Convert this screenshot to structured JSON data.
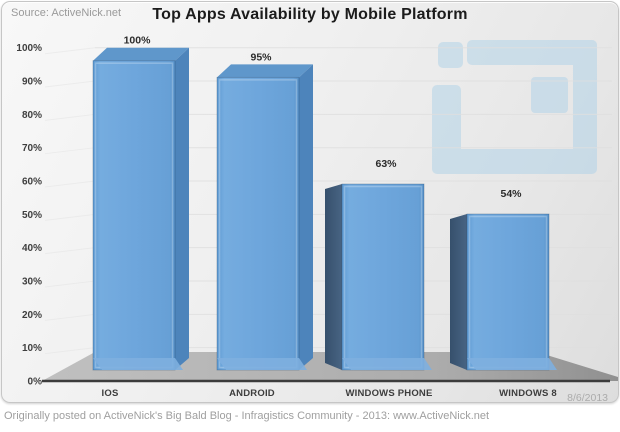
{
  "source_label": "Source: ActiveNick.net",
  "title": "Top Apps Availability by Mobile Platform",
  "date_label": "8/6/2013",
  "footer_note": "Originally posted on ActiveNick's Big Bald Blog - Infragistics Community - 2013: www.ActiveNick.net",
  "watermark": {
    "icon": "infragistics-ig-logo",
    "color": "#b7d6ea"
  },
  "chart_data": {
    "type": "bar",
    "style": "3d-bar",
    "title": "Top Apps Availability by Mobile Platform",
    "categories": [
      "IOS",
      "ANDROID",
      "WINDOWS PHONE",
      "WINDOWS 8"
    ],
    "values": [
      100,
      95,
      63,
      54
    ],
    "value_labels": [
      "100%",
      "95%",
      "63%",
      "54%"
    ],
    "yticks": [
      "0%",
      "10%",
      "20%",
      "30%",
      "40%",
      "50%",
      "60%",
      "70%",
      "80%",
      "90%",
      "100%"
    ],
    "ylim": [
      0,
      100
    ],
    "xlabel": "",
    "ylabel": "",
    "grid": true,
    "legend": false,
    "bar_colors": {
      "front": "#6ca4da",
      "top": "#5f97cb",
      "side_right": "#4d84bb",
      "side_left_dark": "#3f5a78",
      "bottom_bevel": "#7eafdf"
    },
    "floor_color": "#b2b2b2",
    "axis_line_color": "#3c3c3c"
  }
}
